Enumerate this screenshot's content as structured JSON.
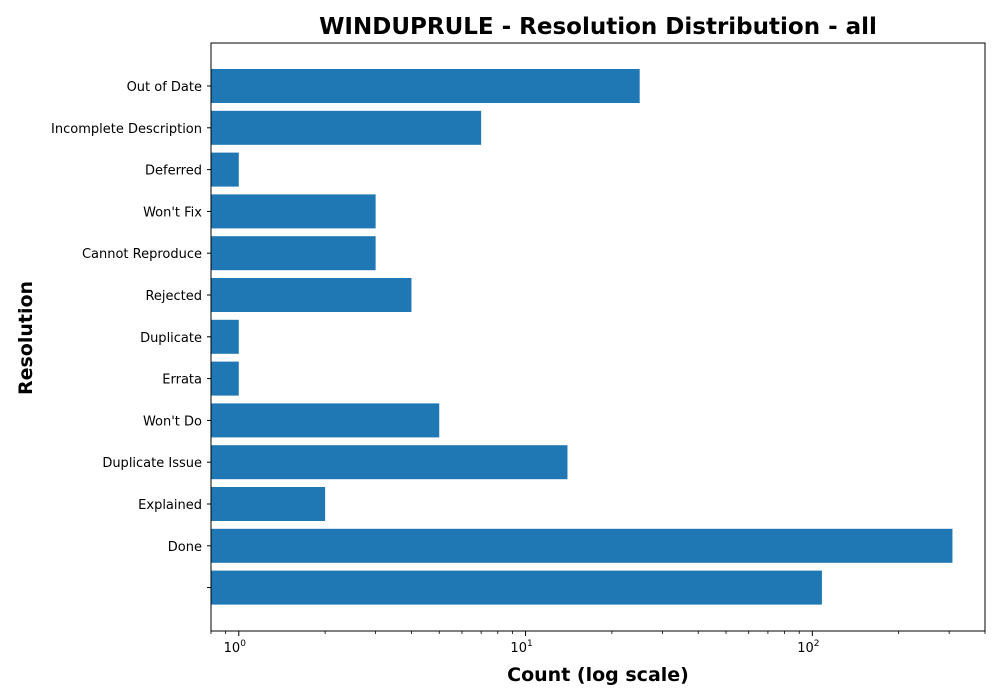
{
  "chart_data": {
    "type": "bar",
    "orientation": "horizontal",
    "title": "WINDUPRULE - Resolution Distribution - all",
    "xlabel": "Count (log scale)",
    "ylabel": "Resolution",
    "x_scale": "log",
    "xlim": [
      0.8,
      400
    ],
    "x_ticks": [
      {
        "base": "10",
        "exp": "0",
        "value": 1
      },
      {
        "base": "10",
        "exp": "1",
        "value": 10
      },
      {
        "base": "10",
        "exp": "2",
        "value": 100
      }
    ],
    "categories": [
      "Out of Date",
      "Incomplete Description",
      "Deferred",
      "Won't Fix",
      "Cannot Reproduce",
      "Rejected",
      "Duplicate",
      "Errata",
      "Won't Do",
      "Duplicate Issue",
      "Explained",
      "Done",
      ""
    ],
    "values": [
      25,
      7,
      1,
      3,
      3,
      4,
      1,
      1,
      5,
      14,
      2,
      308,
      108
    ],
    "color": "#1f77b4",
    "grid": false,
    "legend": "none"
  }
}
